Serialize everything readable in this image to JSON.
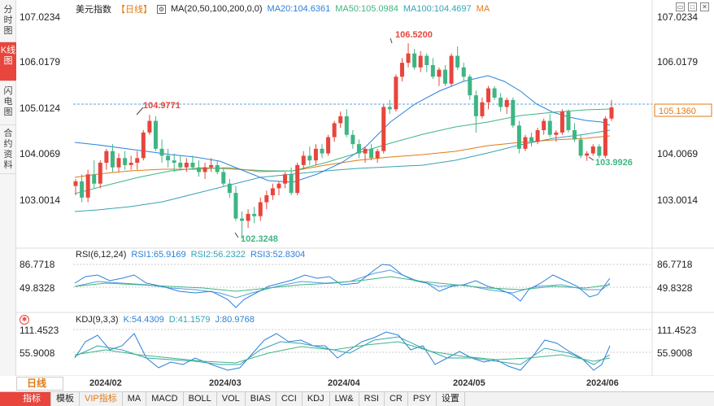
{
  "left_tabs": [
    {
      "label": "分时图"
    },
    {
      "label": "K线图",
      "active": true
    },
    {
      "label": "闪电图"
    },
    {
      "label": "合约资料"
    }
  ],
  "main": {
    "symbol": "美元指数",
    "period": "【日线】",
    "ma_params": "MA(20,50,100,200,0,0)",
    "ma20": "MA20:104.6361",
    "ma50": "MA50:105.0984",
    "ma100": "MA100:104.4697",
    "ma_extra": "MA",
    "current_price": "105.1360",
    "annotations": {
      "high": "106.5200",
      "low": "102.3248",
      "left_high": "104.9771",
      "recent_low": "103.9926"
    },
    "yticks": [
      "107.0234",
      "106.0179",
      "105.0124",
      "104.0069",
      "103.0014"
    ]
  },
  "rsi": {
    "label": "RSI(6,12,24)",
    "rsi1": "RSI1:65.9169",
    "rsi2": "RSI2:56.2322",
    "rsi3": "RSI3:52.8304",
    "yticks": [
      "86.7718",
      "49.8328"
    ]
  },
  "kdj": {
    "label": "KDJ(9,3,3)",
    "k": "K:54.4309",
    "d": "D:41.1579",
    "j": "J:80.9768",
    "yticks": [
      "111.4523",
      "55.9008"
    ]
  },
  "xaxis": {
    "labels": [
      "2024/02",
      "2024/03",
      "2024/04",
      "2024/05",
      "2024/06"
    ],
    "period_button": "日线"
  },
  "bottom_tabs": [
    "指标",
    "模板",
    "VIP指标",
    "MA",
    "MACD",
    "BOLL",
    "VOL",
    "BIAS",
    "CCI",
    "KDJ",
    "LW&",
    "RSI",
    "CR",
    "PSY",
    "设置"
  ],
  "icons": [
    "restore-icon",
    "maximize-icon",
    "close-icon",
    "settings-icon"
  ],
  "colors": {
    "up": "#e8453c",
    "down": "#3fb583",
    "ma20": "#2b82d9",
    "ma50": "#3fb583",
    "ma100": "#e07b14",
    "ma200": "#37a2b5",
    "accent": "#e07b14"
  },
  "chart_data": {
    "type": "candlestick",
    "ylim": [
      102.2,
      107.1
    ],
    "candles": [
      [
        103.45,
        103.6,
        103.25,
        103.55
      ],
      [
        103.55,
        103.7,
        103.1,
        103.2
      ],
      [
        103.2,
        103.8,
        103.1,
        103.7
      ],
      [
        103.7,
        104.0,
        103.4,
        103.5
      ],
      [
        103.5,
        104.0,
        103.4,
        103.95
      ],
      [
        103.95,
        104.25,
        103.8,
        104.2
      ],
      [
        104.2,
        104.35,
        103.75,
        103.85
      ],
      [
        103.85,
        104.15,
        103.75,
        104.05
      ],
      [
        104.05,
        104.2,
        103.8,
        103.9
      ],
      [
        103.9,
        104.1,
        103.8,
        103.95
      ],
      [
        103.95,
        104.2,
        103.8,
        104.05
      ],
      [
        104.05,
        104.65,
        104.0,
        104.6
      ],
      [
        104.6,
        104.98,
        104.55,
        104.85
      ],
      [
        104.85,
        104.95,
        104.2,
        104.25
      ],
      [
        104.25,
        104.45,
        103.95,
        104.1
      ],
      [
        104.1,
        104.25,
        103.85,
        104.0
      ],
      [
        104.0,
        104.15,
        103.75,
        103.95
      ],
      [
        103.95,
        104.1,
        103.8,
        103.85
      ],
      [
        103.85,
        104.05,
        103.75,
        103.95
      ],
      [
        103.95,
        104.1,
        103.8,
        103.85
      ],
      [
        103.85,
        104.0,
        103.65,
        103.75
      ],
      [
        103.75,
        103.95,
        103.6,
        103.85
      ],
      [
        103.85,
        104.05,
        103.75,
        103.9
      ],
      [
        103.9,
        104.0,
        103.7,
        103.75
      ],
      [
        103.75,
        103.85,
        103.45,
        103.5
      ],
      [
        103.5,
        103.6,
        103.2,
        103.3
      ],
      [
        103.3,
        103.45,
        102.7,
        102.75
      ],
      [
        102.75,
        102.9,
        102.32,
        102.7
      ],
      [
        102.7,
        102.95,
        102.55,
        102.85
      ],
      [
        102.85,
        103.0,
        102.65,
        102.8
      ],
      [
        102.8,
        103.2,
        102.7,
        103.1
      ],
      [
        103.1,
        103.35,
        102.95,
        103.25
      ],
      [
        103.25,
        103.5,
        103.15,
        103.4
      ],
      [
        103.4,
        103.55,
        103.25,
        103.5
      ],
      [
        103.5,
        103.75,
        103.4,
        103.7
      ],
      [
        103.7,
        103.85,
        103.25,
        103.3
      ],
      [
        103.3,
        103.95,
        103.25,
        103.9
      ],
      [
        103.9,
        104.2,
        103.8,
        104.1
      ],
      [
        104.1,
        104.3,
        103.9,
        104.0
      ],
      [
        104.0,
        104.35,
        103.9,
        104.25
      ],
      [
        104.25,
        104.35,
        104.05,
        104.15
      ],
      [
        104.15,
        104.55,
        104.1,
        104.5
      ],
      [
        104.5,
        104.85,
        104.4,
        104.8
      ],
      [
        104.8,
        105.05,
        104.7,
        104.95
      ],
      [
        104.95,
        105.1,
        104.5,
        104.55
      ],
      [
        104.55,
        104.65,
        104.25,
        104.35
      ],
      [
        104.35,
        104.45,
        104.05,
        104.15
      ],
      [
        104.15,
        104.3,
        103.95,
        104.25
      ],
      [
        104.25,
        104.35,
        104.0,
        104.05
      ],
      [
        104.05,
        104.25,
        103.95,
        104.2
      ],
      [
        104.2,
        105.2,
        104.15,
        105.15
      ],
      [
        105.15,
        105.3,
        105.0,
        105.1
      ],
      [
        105.1,
        105.85,
        105.05,
        105.8
      ],
      [
        105.8,
        106.2,
        105.7,
        106.1
      ],
      [
        106.1,
        106.52,
        106.0,
        106.3
      ],
      [
        106.3,
        106.4,
        105.95,
        106.0
      ],
      [
        106.0,
        106.35,
        105.9,
        106.25
      ],
      [
        106.25,
        106.3,
        105.9,
        106.05
      ],
      [
        106.05,
        106.2,
        105.75,
        105.8
      ],
      [
        105.8,
        106.0,
        105.6,
        105.95
      ],
      [
        105.95,
        106.05,
        105.6,
        105.65
      ],
      [
        105.65,
        106.3,
        105.6,
        106.25
      ],
      [
        106.25,
        106.45,
        105.95,
        106.0
      ],
      [
        106.0,
        106.1,
        105.7,
        105.8
      ],
      [
        105.8,
        105.85,
        105.3,
        105.4
      ],
      [
        105.4,
        105.5,
        104.6,
        104.95
      ],
      [
        104.95,
        105.35,
        104.9,
        105.25
      ],
      [
        105.25,
        105.6,
        105.1,
        105.55
      ],
      [
        105.55,
        105.6,
        105.3,
        105.35
      ],
      [
        105.35,
        105.45,
        105.05,
        105.15
      ],
      [
        105.15,
        105.35,
        105.0,
        105.3
      ],
      [
        105.3,
        105.35,
        104.7,
        104.75
      ],
      [
        104.75,
        104.85,
        104.15,
        104.25
      ],
      [
        104.25,
        104.55,
        104.2,
        104.5
      ],
      [
        104.5,
        104.6,
        104.3,
        104.4
      ],
      [
        104.4,
        104.7,
        104.35,
        104.65
      ],
      [
        104.65,
        104.9,
        104.55,
        104.85
      ],
      [
        104.85,
        105.0,
        104.5,
        104.55
      ],
      [
        104.55,
        104.65,
        104.4,
        104.6
      ],
      [
        104.6,
        105.1,
        104.55,
        105.05
      ],
      [
        105.05,
        105.1,
        104.6,
        104.65
      ],
      [
        104.65,
        104.8,
        104.4,
        104.45
      ],
      [
        104.45,
        104.55,
        104.05,
        104.1
      ],
      [
        104.1,
        104.2,
        103.99,
        104.15
      ],
      [
        104.15,
        104.35,
        104.1,
        104.3
      ],
      [
        104.3,
        104.35,
        104.05,
        104.1
      ],
      [
        104.1,
        104.95,
        104.05,
        104.9
      ],
      [
        104.9,
        105.3,
        104.85,
        105.14
      ]
    ]
  }
}
